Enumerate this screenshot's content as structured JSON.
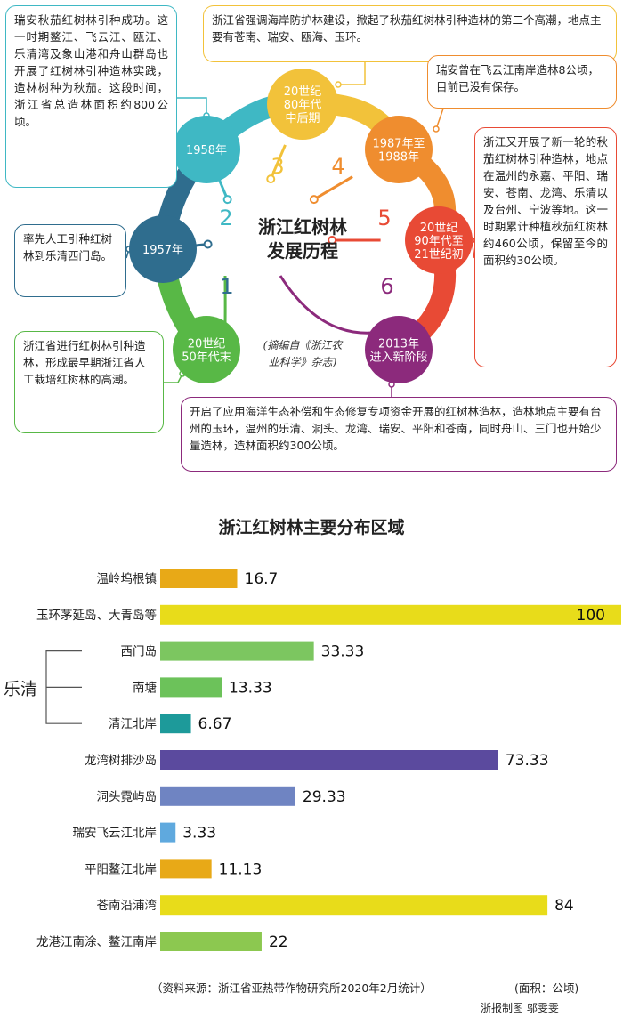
{
  "infographic": {
    "center_title": [
      "浙江红树林",
      "发展历程"
    ],
    "source_quote": [
      "(摘编自《浙江农",
      "业科学》杂志)"
    ],
    "stages": [
      {
        "label": [
          "20世纪",
          "50年代末"
        ],
        "color": "#58b846"
      },
      {
        "label": [
          "1957年"
        ],
        "color": "#2f6d8e"
      },
      {
        "label": [
          "1958年"
        ],
        "color": "#3fb8c4"
      },
      {
        "label": [
          "20世纪",
          "80年代",
          "中后期"
        ],
        "color": "#f2c23a"
      },
      {
        "label": [
          "1987年至",
          "1988年"
        ],
        "color": "#ef8d2f"
      },
      {
        "label": [
          "20世纪",
          "90年代至",
          "21世纪初"
        ],
        "color": "#e84a35"
      },
      {
        "label": [
          "2013年",
          "进入新阶段"
        ],
        "color": "#8c2a7c"
      }
    ],
    "sector_numbers": [
      "1",
      "2",
      "3",
      "4",
      "5",
      "6"
    ],
    "callouts": [
      {
        "text": "瑞安秋茄红树林引种成功。这一时期鳌江、飞云江、瓯江、乐清湾及象山港和舟山群岛也开展了红树林引种造林实践，造林树种为秋茄。这段时间，浙江省总造林面积约800公顷。",
        "color": "#3fb8c4"
      },
      {
        "text": "率先人工引种红树林到乐清西门岛。",
        "color": "#2f6d8e"
      },
      {
        "text": "浙江省进行红树林引种造林，形成最早期浙江省人工栽培红树林的高潮。",
        "color": "#58b846"
      },
      {
        "text": "浙江省强调海岸防护林建设，掀起了秋茄红树林引种造林的第二个高潮，地点主要有苍南、瑞安、瓯海、玉环。",
        "color": "#f2c23a"
      },
      {
        "text": "瑞安曾在飞云江南岸造林8公顷，目前已没有保存。",
        "color": "#ef8d2f"
      },
      {
        "text": "浙江又开展了新一轮的秋茄红树林引种造林，地点在温州的永嘉、平阳、瑞安、苍南、龙湾、乐清以及台州、宁波等地。这一时期累计种植秋茄红树林约460公顷，保留至今的面积约30公顷。",
        "color": "#e84a35"
      },
      {
        "text": "开启了应用海洋生态补偿和生态修复专项资金开展的红树林造林，造林地点主要有台州的玉环，温州的乐清、洞头、龙湾、瑞安、平阳和苍南，同时舟山、三门也开始少量造林，造林面积约300公顷。",
        "color": "#8c2a7c"
      }
    ]
  },
  "chart_data": {
    "type": "bar",
    "orientation": "horizontal",
    "title": "浙江红树林主要分布区域",
    "group_label": "乐清",
    "categories": [
      "温岭坞根镇",
      "玉环茅延岛、大青岛等",
      "西门岛",
      "南塘",
      "清江北岸",
      "龙湾树排沙岛",
      "洞头霓屿岛",
      "瑞安飞云江北岸",
      "平阳鳌江北岸",
      "苍南沿浦湾",
      "龙港江南涂、鳌江南岸"
    ],
    "values": [
      16.7,
      100,
      33.33,
      13.33,
      6.67,
      73.33,
      29.33,
      3.33,
      11.13,
      84,
      22
    ],
    "value_labels": [
      "16.7",
      "100",
      "33.33",
      "13.33",
      "6.67",
      "73.33",
      "29.33",
      "3.33",
      "11.13",
      "84",
      "22"
    ],
    "colors": [
      "#e8a917",
      "#e8dc1a",
      "#7cc660",
      "#6cc25a",
      "#1d9a9a",
      "#5b4a9e",
      "#6f84c2",
      "#5fa9de",
      "#e8a917",
      "#e8dc1a",
      "#8cc850"
    ],
    "xlim": [
      0,
      100
    ],
    "unit_note": "(面积：公顷)",
    "source": "（资料来源：浙江省亚热带作物研究所2020年2月统计）",
    "credit": "浙报制图  邬雯雯"
  }
}
